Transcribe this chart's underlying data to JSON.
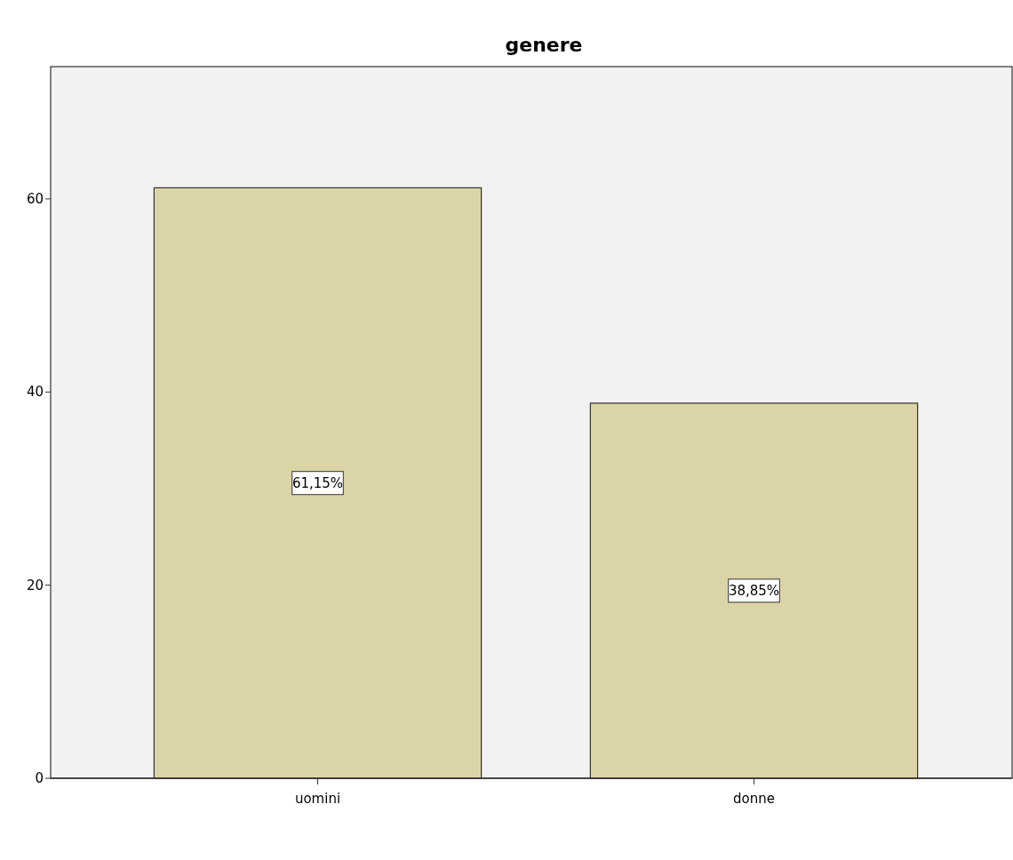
{
  "chart_data": {
    "type": "bar",
    "title": "genere",
    "categories": [
      "uomini",
      "donne"
    ],
    "values": [
      61.15,
      38.85
    ],
    "color": "#dbd4a6",
    "value_labels": [
      "61,15%",
      "38,85%"
    ],
    "ylim": [
      0,
      73.7
    ],
    "yticks": [
      0,
      20,
      40,
      60
    ],
    "grid": false
  }
}
